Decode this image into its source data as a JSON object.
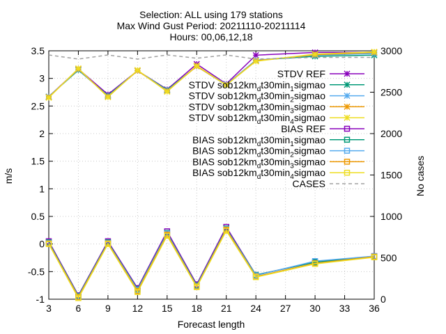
{
  "chart_data": {
    "type": "line",
    "title_lines": [
      "Selection: ALL using   179 stations",
      "Max Wind Gust   Period: 20211110-20211114",
      "Hours: 00,06,12,18"
    ],
    "xlabel": "Forecast length",
    "ylabel": "m/s",
    "y2label": "No cases",
    "x_ticks": [
      3,
      6,
      9,
      12,
      15,
      18,
      21,
      24,
      27,
      30,
      33,
      36
    ],
    "y_ticks": [
      -1,
      -0.5,
      0,
      0.5,
      1,
      1.5,
      2,
      2.5,
      3,
      3.5
    ],
    "y2_ticks": [
      0,
      500,
      1000,
      1500,
      2000,
      2500,
      3000
    ],
    "xlim": [
      3,
      36
    ],
    "ylim": [
      -1,
      3.5
    ],
    "y2lim": [
      0,
      3000
    ],
    "grid": true,
    "legend_position": "top-right",
    "x": [
      3,
      6,
      9,
      12,
      15,
      18,
      21,
      24,
      30,
      36
    ],
    "series": [
      {
        "label": "STDV REF",
        "kind": "stdv",
        "marker": "x",
        "color": "#8800bb",
        "axis": "y1",
        "values": [
          2.67,
          3.17,
          2.71,
          3.14,
          2.8,
          3.26,
          2.9,
          3.42,
          3.47,
          3.47
        ]
      },
      {
        "label": "STDV sob12km_d t30min_1 sigmao",
        "label_parts": [
          "STDV sob12km",
          "d",
          "t30min",
          "1",
          "sigmao"
        ],
        "kind": "stdv",
        "marker": "x",
        "color": "#009977",
        "axis": "y1",
        "values": [
          2.67,
          3.15,
          2.69,
          3.14,
          2.79,
          3.22,
          2.88,
          3.33,
          3.4,
          3.42
        ]
      },
      {
        "label": "STDV sob12km_d t30min_2 sigmao",
        "label_parts": [
          "STDV sob12km",
          "d",
          "t30min",
          "2",
          "sigmao"
        ],
        "kind": "stdv",
        "marker": "x",
        "color": "#55aaee",
        "axis": "y1",
        "values": [
          2.67,
          3.16,
          2.68,
          3.14,
          2.78,
          3.22,
          2.89,
          3.33,
          3.42,
          3.45
        ]
      },
      {
        "label": "STDV sob12km_d t30min_3 sigmao",
        "label_parts": [
          "STDV sob12km",
          "d",
          "t30min",
          "3",
          "sigmao"
        ],
        "kind": "stdv",
        "marker": "x",
        "color": "#ee9900",
        "axis": "y1",
        "values": [
          2.66,
          3.17,
          2.67,
          3.14,
          2.77,
          3.22,
          2.88,
          3.32,
          3.43,
          3.47
        ]
      },
      {
        "label": "STDV sob12km_d t30min_4 sigmao",
        "label_parts": [
          "STDV sob12km",
          "d",
          "t30min",
          "4",
          "sigmao"
        ],
        "kind": "stdv",
        "marker": "x",
        "color": "#eedd22",
        "axis": "y1",
        "values": [
          2.65,
          3.18,
          2.66,
          3.15,
          2.76,
          3.23,
          2.88,
          3.31,
          3.44,
          3.48
        ]
      },
      {
        "label": "BIAS REF",
        "kind": "bias",
        "marker": "square",
        "color": "#8800bb",
        "axis": "y1",
        "values": [
          0.05,
          -0.93,
          0.05,
          -0.8,
          0.23,
          -0.73,
          0.31,
          -0.56,
          -0.33,
          -0.22
        ]
      },
      {
        "label": "BIAS sob12km_d t30min_1 sigmao",
        "label_parts": [
          "BIAS sob12km",
          "d",
          "t30min",
          "1",
          "sigmao"
        ],
        "kind": "bias",
        "marker": "square",
        "color": "#009977",
        "axis": "y1",
        "values": [
          0.03,
          -0.94,
          0.03,
          -0.82,
          0.2,
          -0.75,
          0.28,
          -0.56,
          -0.33,
          -0.23
        ]
      },
      {
        "label": "BIAS sob12km_d t30min_2 sigmao",
        "label_parts": [
          "BIAS sob12km",
          "d",
          "t30min",
          "2",
          "sigmao"
        ],
        "kind": "bias",
        "marker": "square",
        "color": "#55aaee",
        "axis": "y1",
        "values": [
          0.02,
          -0.95,
          0.02,
          -0.83,
          0.19,
          -0.76,
          0.27,
          -0.57,
          -0.31,
          -0.22
        ]
      },
      {
        "label": "BIAS sob12km_d t30min_3 sigmao",
        "label_parts": [
          "BIAS sob12km",
          "d",
          "t30min",
          "3",
          "sigmao"
        ],
        "kind": "bias",
        "marker": "square",
        "color": "#ee9900",
        "axis": "y1",
        "values": [
          0.01,
          -0.96,
          0.01,
          -0.85,
          0.17,
          -0.77,
          0.26,
          -0.59,
          -0.35,
          -0.23
        ]
      },
      {
        "label": "BIAS sob12km_d t30min_4 sigmao",
        "label_parts": [
          "BIAS sob12km",
          "d",
          "t30min",
          "4",
          "sigmao"
        ],
        "kind": "bias",
        "marker": "square",
        "color": "#eedd22",
        "axis": "y1",
        "values": [
          0.0,
          -0.98,
          0.0,
          -0.87,
          0.15,
          -0.78,
          0.24,
          -0.6,
          -0.36,
          -0.24
        ]
      },
      {
        "label": "CASES",
        "kind": "cases",
        "marker": "none",
        "color": "#a0a0a0",
        "axis": "y2",
        "values": [
          2950,
          2900,
          2950,
          2900,
          2950,
          2910,
          2950,
          2900,
          2920,
          2920
        ]
      }
    ]
  }
}
